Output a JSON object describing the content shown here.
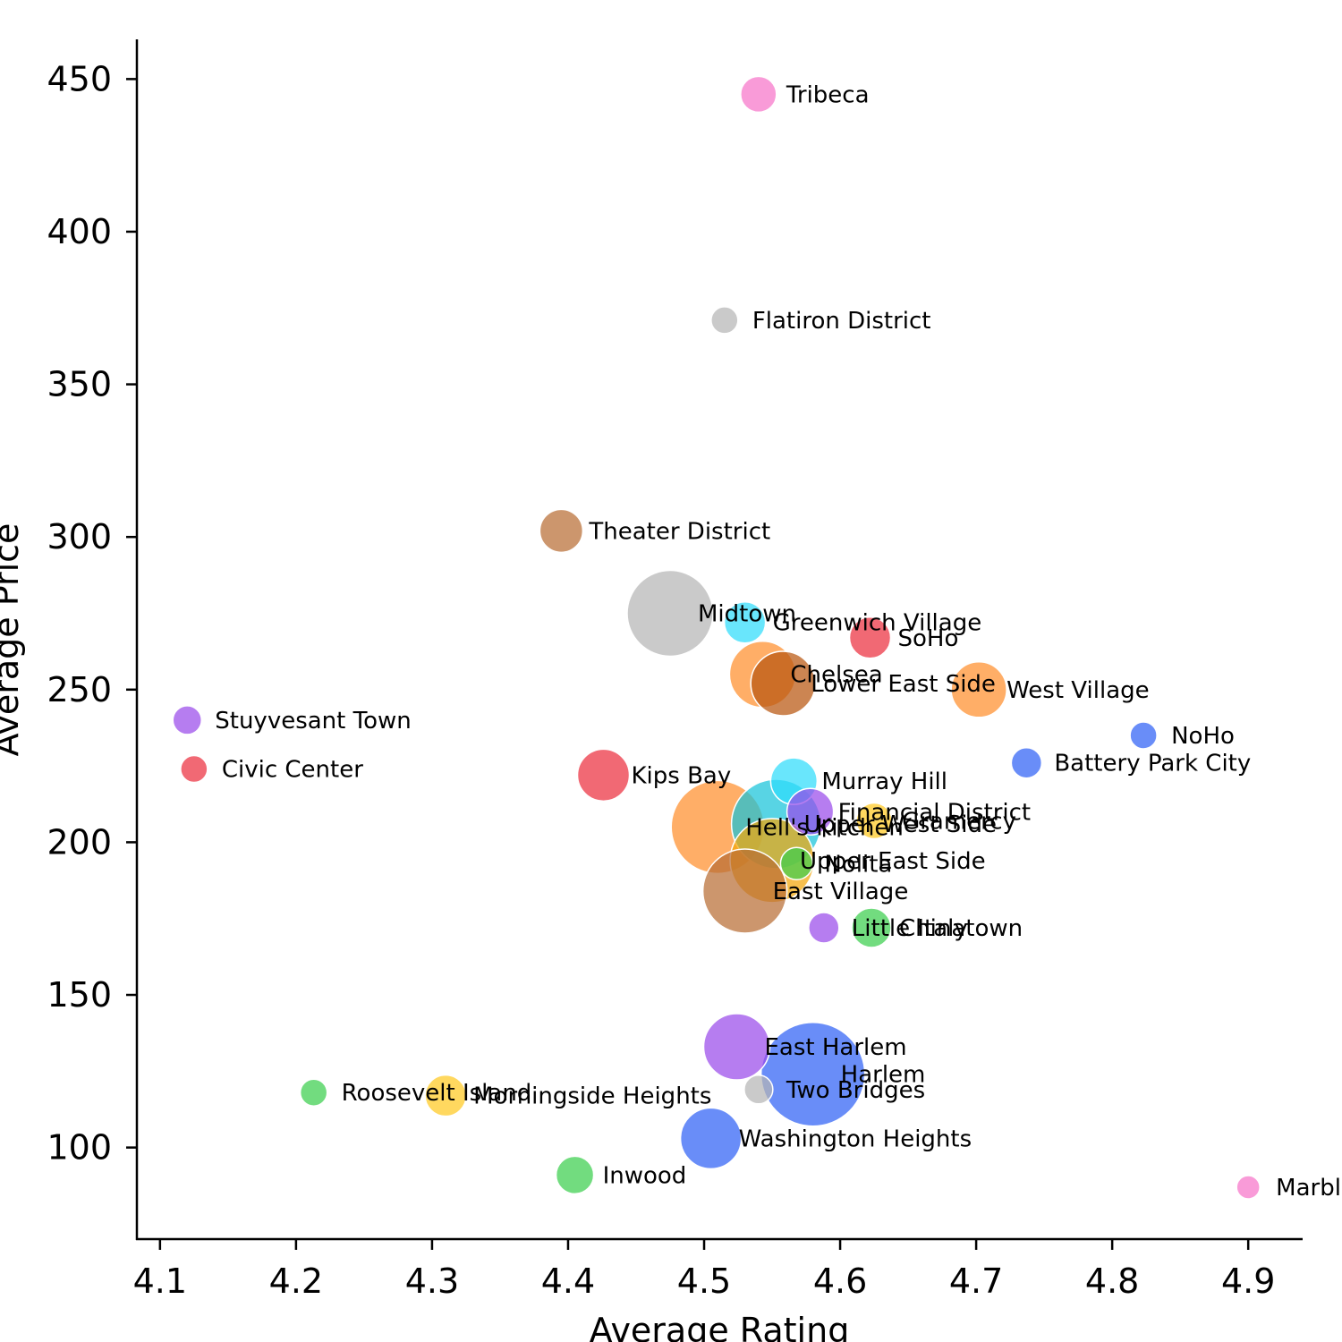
{
  "chart_data": {
    "type": "scatter",
    "title": "",
    "xlabel": "Average Rating",
    "ylabel": "Average Price",
    "xlim": [
      4.083,
      4.94
    ],
    "ylim": [
      70,
      463
    ],
    "xticks": [
      "4.1",
      "4.2",
      "4.3",
      "4.4",
      "4.5",
      "4.6",
      "4.7",
      "4.8",
      "4.9"
    ],
    "yticks": [
      "100",
      "150",
      "200",
      "250",
      "300",
      "350",
      "400",
      "450"
    ],
    "grid": false,
    "legend": "none",
    "points": [
      {
        "label": "Tribeca",
        "x": 4.54,
        "y": 445,
        "size": 20,
        "color": "#f774c9"
      },
      {
        "label": "Flatiron District",
        "x": 4.515,
        "y": 371,
        "size": 15,
        "color": "#b5b5b5"
      },
      {
        "label": "Theater District",
        "x": 4.395,
        "y": 302,
        "size": 24,
        "color": "#b86e35"
      },
      {
        "label": "Midtown",
        "x": 4.475,
        "y": 275,
        "size": 48,
        "color": "#b5b5b5"
      },
      {
        "label": "Greenwich Village",
        "x": 4.53,
        "y": 272,
        "size": 23,
        "color": "#2fdcfb"
      },
      {
        "label": "SoHo",
        "x": 4.622,
        "y": 267,
        "size": 23,
        "color": "#eb2f3f"
      },
      {
        "label": "Chelsea",
        "x": 4.543,
        "y": 255,
        "size": 37,
        "color": "#ff8f2c"
      },
      {
        "label": "Lower East Side",
        "x": 4.558,
        "y": 252,
        "size": 36,
        "color": "#b8560f"
      },
      {
        "label": "West Village",
        "x": 4.702,
        "y": 250,
        "size": 31,
        "color": "#ff8f2c"
      },
      {
        "label": "Stuyvesant Town",
        "x": 4.12,
        "y": 240,
        "size": 16,
        "color": "#9a4bea"
      },
      {
        "label": "NoHo",
        "x": 4.823,
        "y": 235,
        "size": 15,
        "color": "#2f61f5"
      },
      {
        "label": "Battery Park City",
        "x": 4.737,
        "y": 226,
        "size": 17,
        "color": "#2f61f5"
      },
      {
        "label": "Civic Center",
        "x": 4.125,
        "y": 224,
        "size": 15,
        "color": "#eb2f3f"
      },
      {
        "label": "Kips Bay",
        "x": 4.426,
        "y": 222,
        "size": 29,
        "color": "#eb2f3f"
      },
      {
        "label": "Murray Hill",
        "x": 4.566,
        "y": 220,
        "size": 26,
        "color": "#2fdcfb"
      },
      {
        "label": "Financial District",
        "x": 4.578,
        "y": 210,
        "size": 26,
        "color": "#9a4bea"
      },
      {
        "label": "Gramercy",
        "x": 4.625,
        "y": 207,
        "size": 20,
        "color": "#ffc921"
      },
      {
        "label": "Hell's Kitchen",
        "x": 4.51,
        "y": 205,
        "size": 52,
        "color": "#ff8f2c"
      },
      {
        "label": "Upper West Side",
        "x": 4.553,
        "y": 206,
        "size": 50,
        "color": "#18c4d9"
      },
      {
        "label": "Nolita",
        "x": 4.568,
        "y": 193,
        "size": 18,
        "color": "#3ccf4d"
      },
      {
        "label": "Upper East Side",
        "x": 4.55,
        "y": 194,
        "size": 47,
        "color": "#f2a60a"
      },
      {
        "label": "East Village",
        "x": 4.53,
        "y": 184,
        "size": 47,
        "color": "#b86e35"
      },
      {
        "label": "Little Italy",
        "x": 4.588,
        "y": 172,
        "size": 17,
        "color": "#9a4bea"
      },
      {
        "label": "Chinatown",
        "x": 4.623,
        "y": 172,
        "size": 22,
        "color": "#3ccf4d"
      },
      {
        "label": "East Harlem",
        "x": 4.524,
        "y": 133,
        "size": 37,
        "color": "#9a4bea"
      },
      {
        "label": "Harlem",
        "x": 4.58,
        "y": 124,
        "size": 58,
        "color": "#2f61f5"
      },
      {
        "label": "Two Bridges",
        "x": 4.54,
        "y": 119,
        "size": 16,
        "color": "#b5b5b5"
      },
      {
        "label": "Roosevelt Island",
        "x": 4.213,
        "y": 118,
        "size": 15,
        "color": "#3ccf4d"
      },
      {
        "label": "Morningside Heights",
        "x": 4.31,
        "y": 117,
        "size": 23,
        "color": "#ffc921"
      },
      {
        "label": "Washington Heights",
        "x": 4.505,
        "y": 103,
        "size": 34,
        "color": "#2f61f5"
      },
      {
        "label": "Inwood",
        "x": 4.405,
        "y": 91,
        "size": 21,
        "color": "#3ccf4d"
      },
      {
        "label": "Marble Hill",
        "x": 4.9,
        "y": 87,
        "size": 13,
        "color": "#f774c9"
      }
    ]
  }
}
